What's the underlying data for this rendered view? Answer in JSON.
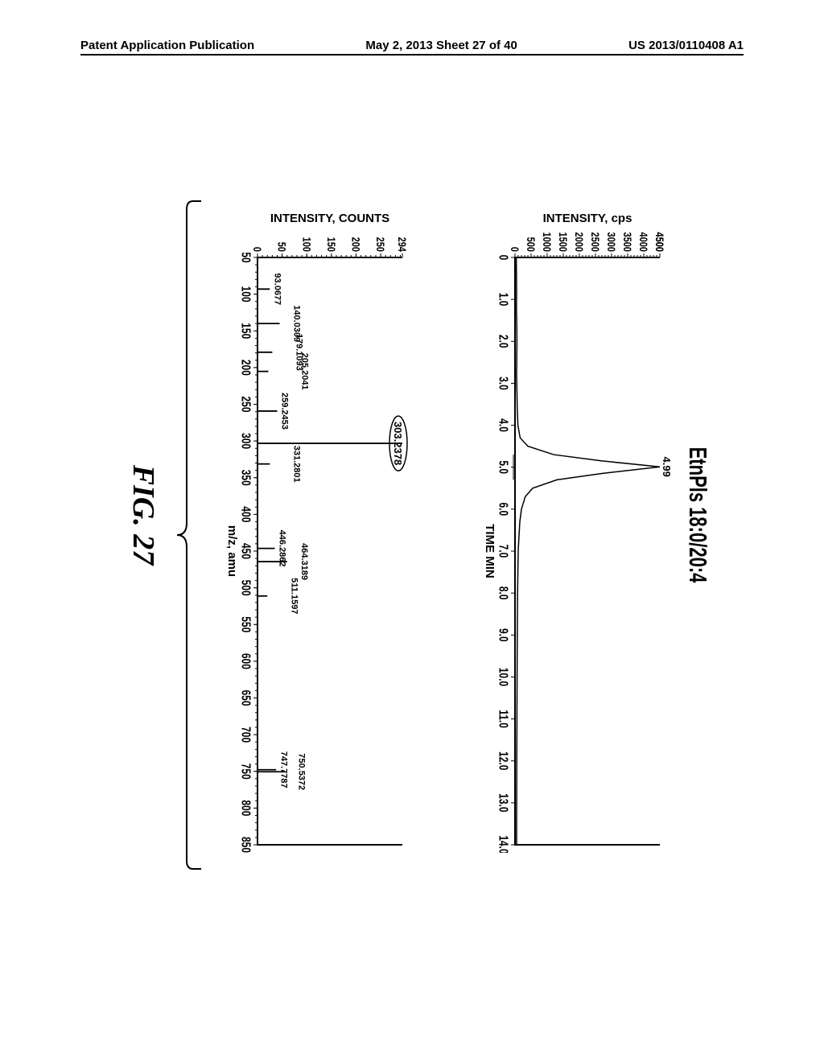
{
  "header": {
    "left": "Patent Application Publication",
    "center": "May 2, 2013  Sheet 27 of 40",
    "right": "US 2013/0110408 A1"
  },
  "figure": {
    "compound_title": "EtnPls 18:0/20:4",
    "caption": "FIG. 27",
    "top_chart": {
      "type": "line",
      "xlabel": "TIME MIN",
      "ylabel": "INTENSITY, cps",
      "xlim": [
        0,
        14.0
      ],
      "ylim": [
        0,
        4500
      ],
      "xticks": [
        0,
        1.0,
        2.0,
        3.0,
        4.0,
        5.0,
        6.0,
        7.0,
        8.0,
        9.0,
        10.0,
        11.0,
        12.0,
        13.0,
        14.0
      ],
      "xtick_labels": [
        "0",
        "1.0",
        "2.0",
        "3.0",
        "4.0",
        "5.0",
        "6.0",
        "7.0",
        "8.0",
        "9.0",
        "10.0",
        "11.0",
        "12.0",
        "13.0",
        "14.0"
      ],
      "yticks": [
        0,
        500,
        1000,
        1500,
        2000,
        2500,
        3000,
        3500,
        4000,
        4500,
        4500
      ],
      "ytick_labels": [
        "0",
        "500",
        "1000",
        "1500",
        "2000",
        "2500",
        "3000",
        "3500",
        "4000",
        "4500",
        "4500"
      ],
      "peak_label": "4.99",
      "peak_x": 4.99,
      "trace": [
        [
          0.0,
          40
        ],
        [
          0.4,
          45
        ],
        [
          0.8,
          50
        ],
        [
          1.2,
          45
        ],
        [
          1.6,
          55
        ],
        [
          2.0,
          60
        ],
        [
          2.4,
          55
        ],
        [
          2.8,
          50
        ],
        [
          3.2,
          60
        ],
        [
          3.6,
          70
        ],
        [
          4.0,
          90
        ],
        [
          4.3,
          160
        ],
        [
          4.5,
          400
        ],
        [
          4.7,
          1200
        ],
        [
          4.85,
          2700
        ],
        [
          4.99,
          4500
        ],
        [
          5.15,
          2700
        ],
        [
          5.3,
          1300
        ],
        [
          5.5,
          550
        ],
        [
          5.7,
          320
        ],
        [
          6.0,
          200
        ],
        [
          6.3,
          150
        ],
        [
          6.7,
          120
        ],
        [
          7.0,
          100
        ],
        [
          8.0,
          80
        ],
        [
          9.0,
          70
        ],
        [
          10.0,
          65
        ],
        [
          11.0,
          60
        ],
        [
          12.0,
          55
        ],
        [
          13.0,
          52
        ],
        [
          14.0,
          50
        ]
      ],
      "color": "#000000",
      "background": "#ffffff"
    },
    "bottom_chart": {
      "type": "bar",
      "xlabel": "m/z, amu",
      "ylabel": "INTENSITY, COUNTS",
      "xlim": [
        50,
        850
      ],
      "ylim": [
        0,
        294
      ],
      "xticks": [
        50,
        100,
        150,
        200,
        250,
        300,
        350,
        400,
        450,
        500,
        550,
        600,
        650,
        700,
        750,
        800,
        850
      ],
      "yticks": [
        0,
        50,
        100,
        150,
        200,
        250,
        294
      ],
      "ytick_labels": [
        "0",
        "50",
        "100",
        "150",
        "200",
        "250",
        "294"
      ],
      "highlight_peak": "303.2378",
      "peaks": [
        {
          "mz": 93.0677,
          "intensity": 25,
          "label": "93.0677"
        },
        {
          "mz": 140.0309,
          "intensity": 45,
          "label": "140.0309"
        },
        {
          "mz": 179.1093,
          "intensity": 30,
          "label": "179.1093"
        },
        {
          "mz": 205.2041,
          "intensity": 22,
          "label": "205.2041"
        },
        {
          "mz": 259.2453,
          "intensity": 40,
          "label": "259.2453"
        },
        {
          "mz": 303.2378,
          "intensity": 294,
          "label": "303.2378"
        },
        {
          "mz": 331.2801,
          "intensity": 25,
          "label": "331.2801"
        },
        {
          "mz": 446.2862,
          "intensity": 35,
          "label": "446.2862"
        },
        {
          "mz": 464.3189,
          "intensity": 60,
          "label": "464.3189"
        },
        {
          "mz": 511.1597,
          "intensity": 20,
          "label": "511.1597"
        },
        {
          "mz": 747.7787,
          "intensity": 38,
          "label": "747.7787"
        },
        {
          "mz": 750.5372,
          "intensity": 55,
          "label": "750.5372"
        }
      ],
      "color": "#000000",
      "background": "#ffffff"
    }
  }
}
